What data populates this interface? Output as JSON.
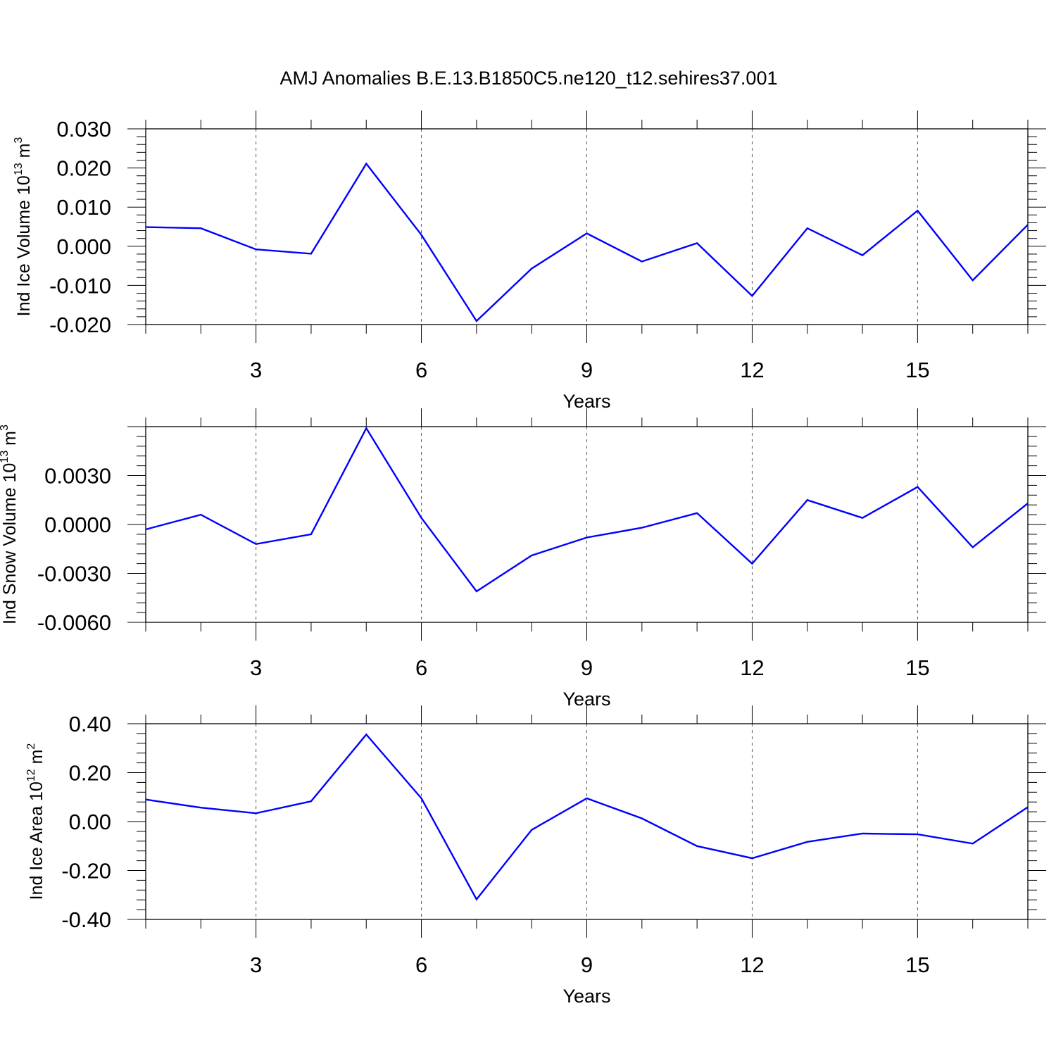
{
  "chart_data": [
    {
      "type": "line",
      "panel": "top",
      "title": "AMJ Anomalies B.E.13.B1850C5.ne120_t12.sehires37.001",
      "ylabel": {
        "main": "Ind Ice Volume 10",
        "exp": "13",
        "unit": " m",
        "unit_exp": "3"
      },
      "xlabel": "Years",
      "xlim": [
        1,
        17
      ],
      "ylim": [
        -0.02,
        0.03
      ],
      "yticks": [
        -0.02,
        -0.01,
        0.0,
        0.01,
        0.02,
        0.03
      ],
      "ytick_labels": [
        "-0.020",
        "-0.010",
        "0.000",
        "0.010",
        "0.020",
        "0.030"
      ],
      "xticks": [
        3,
        6,
        9,
        12,
        15
      ],
      "xtick_labels": [
        "3",
        "6",
        "9",
        "12",
        "15"
      ],
      "series": [
        {
          "name": "Ind Ice Volume",
          "color": "#0000ff",
          "x": [
            1,
            2,
            3,
            4,
            5,
            6,
            7,
            8,
            9,
            10,
            11,
            12,
            13,
            14,
            15,
            16,
            17
          ],
          "values": [
            0.0049,
            0.0046,
            -0.0008,
            -0.0019,
            0.0211,
            0.0029,
            -0.0191,
            -0.0057,
            0.0033,
            -0.0039,
            0.0008,
            -0.0127,
            0.0046,
            -0.0023,
            0.0091,
            -0.0087,
            0.0055
          ]
        }
      ]
    },
    {
      "type": "line",
      "panel": "middle",
      "ylabel": {
        "main": "Ind Snow Volume 10",
        "exp": "13",
        "unit": " m",
        "unit_exp": "3"
      },
      "xlabel": "Years",
      "xlim": [
        1,
        17
      ],
      "ylim": [
        -0.006,
        0.006
      ],
      "yticks": [
        -0.006,
        -0.003,
        0.0,
        0.003
      ],
      "ytick_labels": [
        "-0.0060",
        "-0.0030",
        "0.0000",
        "0.0030"
      ],
      "xticks": [
        3,
        6,
        9,
        12,
        15
      ],
      "xtick_labels": [
        "3",
        "6",
        "9",
        "12",
        "15"
      ],
      "series": [
        {
          "name": "Ind Snow Volume",
          "color": "#0000ff",
          "x": [
            1,
            2,
            3,
            4,
            5,
            6,
            7,
            8,
            9,
            10,
            11,
            12,
            13,
            14,
            15,
            16,
            17
          ],
          "values": [
            -0.0003,
            0.0006,
            -0.0012,
            -0.0006,
            0.0059,
            0.0004,
            -0.0041,
            -0.0019,
            -0.0008,
            -0.0002,
            0.0007,
            -0.0024,
            0.0015,
            0.0004,
            0.0023,
            -0.0014,
            0.0013
          ]
        }
      ]
    },
    {
      "type": "line",
      "panel": "bottom",
      "ylabel": {
        "main": "Ind Ice Area 10",
        "exp": "12",
        "unit": " m",
        "unit_exp": "2"
      },
      "xlabel": "Years",
      "xlim": [
        1,
        17
      ],
      "ylim": [
        -0.4,
        0.4
      ],
      "yticks": [
        -0.4,
        -0.2,
        0.0,
        0.2,
        0.4
      ],
      "ytick_labels": [
        "-0.40",
        "-0.20",
        "0.00",
        "0.20",
        "0.40"
      ],
      "xticks": [
        3,
        6,
        9,
        12,
        15
      ],
      "xtick_labels": [
        "3",
        "6",
        "9",
        "12",
        "15"
      ],
      "series": [
        {
          "name": "Ind Ice Area",
          "color": "#0000ff",
          "x": [
            1,
            2,
            3,
            4,
            5,
            6,
            7,
            8,
            9,
            10,
            11,
            12,
            13,
            14,
            15,
            16,
            17
          ],
          "values": [
            0.09,
            0.057,
            0.034,
            0.083,
            0.356,
            0.095,
            -0.318,
            -0.034,
            0.095,
            0.013,
            -0.1,
            -0.15,
            -0.083,
            -0.049,
            -0.052,
            -0.09,
            0.059
          ]
        }
      ]
    }
  ]
}
